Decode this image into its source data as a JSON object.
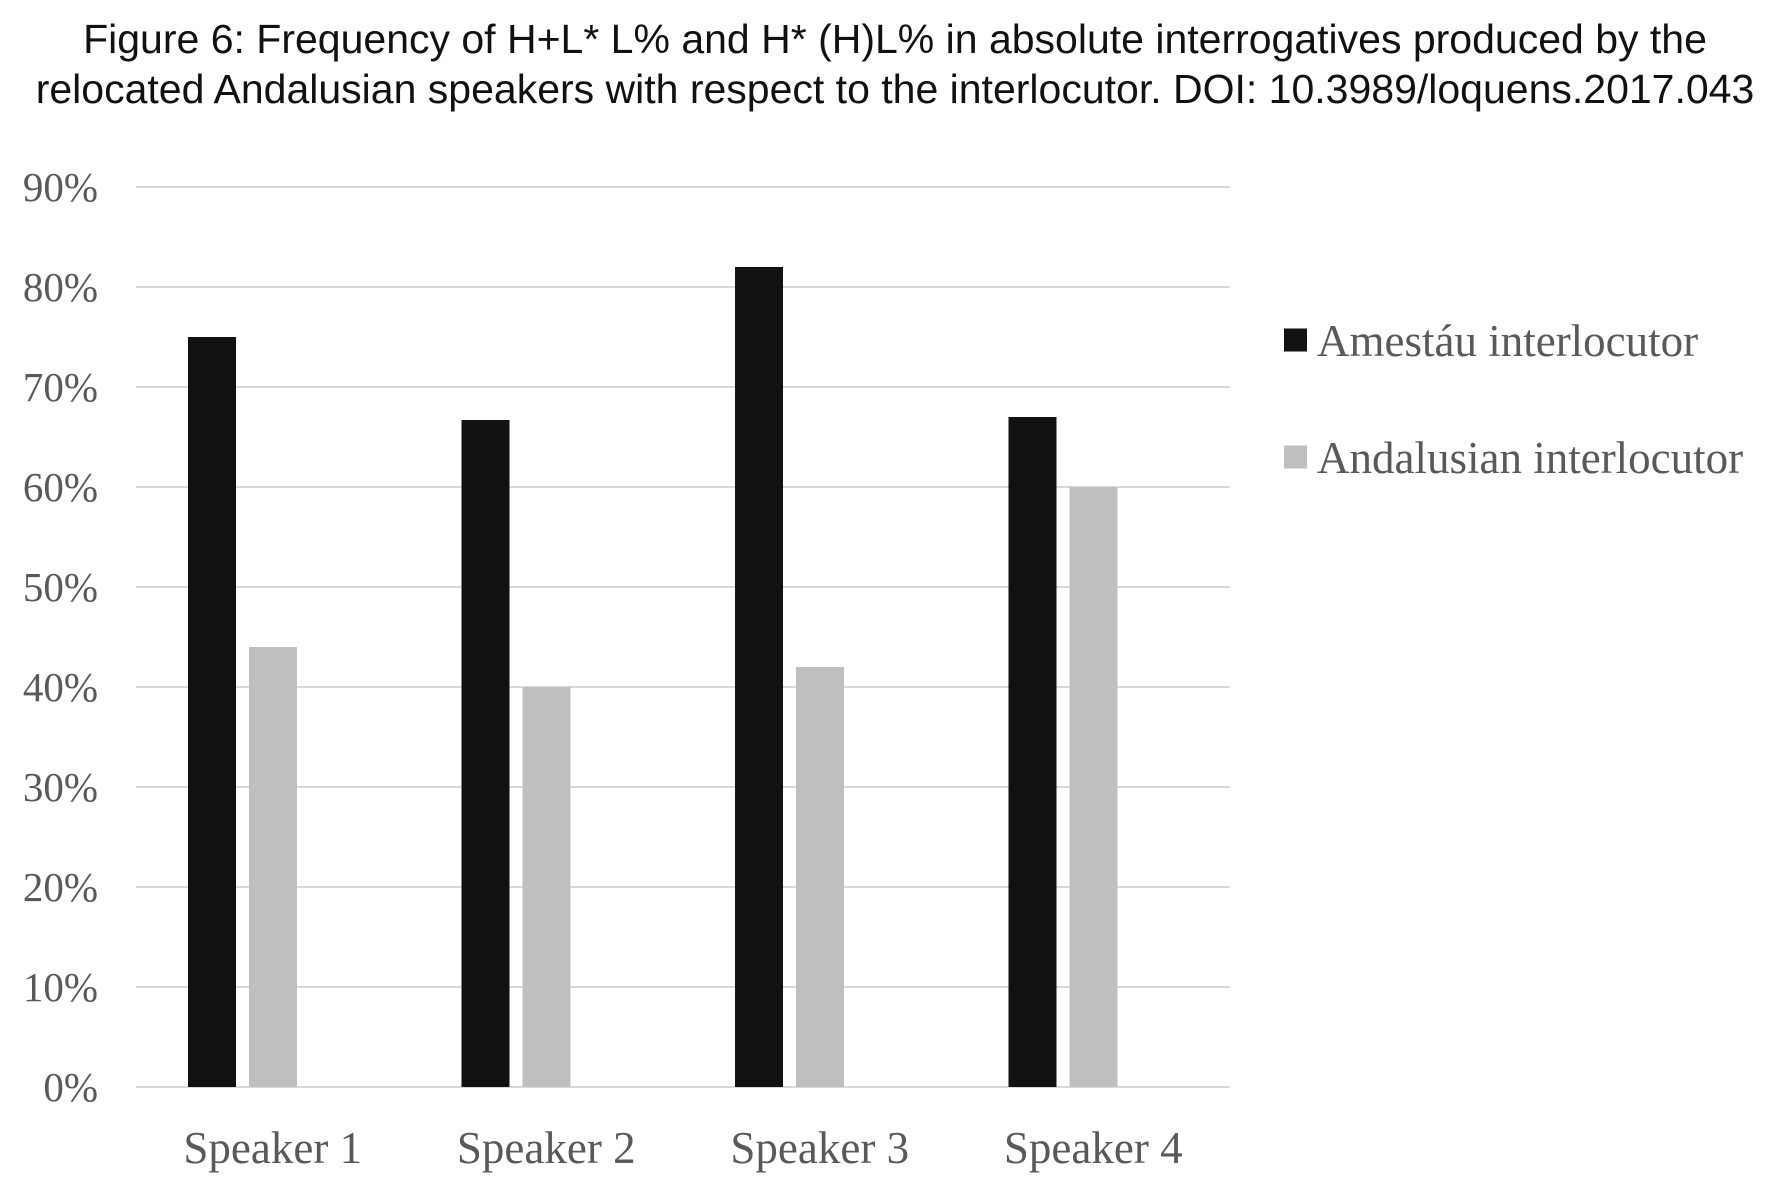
{
  "chart_data": {
    "type": "bar",
    "title_lines": [
      "Figure 6: Frequency of H+L* L% and H* (H)L% in absolute interrogatives produced by the",
      "relocated Andalusian speakers with respect to the interlocutor. DOI: 10.3989/loquens.2017.043"
    ],
    "categories": [
      "Speaker 1",
      "Speaker 2",
      "Speaker 3",
      "Speaker 4"
    ],
    "series": [
      {
        "name": "Amestáu interlocutor",
        "color": "#111111",
        "values": [
          75,
          66.7,
          82,
          67
        ]
      },
      {
        "name": "Andalusian interlocutor",
        "color": "#bfbfbf",
        "values": [
          44,
          40,
          42,
          60
        ]
      }
    ],
    "ylim": [
      0,
      90
    ],
    "yticks": [
      0,
      10,
      20,
      30,
      40,
      50,
      60,
      70,
      80,
      90
    ],
    "ytick_labels": [
      "0%",
      "10%",
      "20%",
      "30%",
      "40%",
      "50%",
      "60%",
      "70%",
      "80%",
      "90%"
    ],
    "xlabel": "",
    "ylabel": "",
    "grid": true,
    "gridline_color": "#d9d9d9",
    "legend_position": "right"
  }
}
